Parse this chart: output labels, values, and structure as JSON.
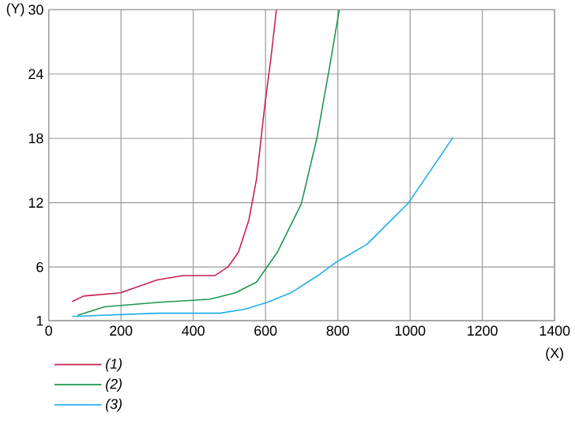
{
  "chart_data": {
    "type": "line",
    "xlabel": "(X)",
    "ylabel": "(Y)",
    "xlim": [
      0,
      1400
    ],
    "ylim": [
      1,
      30
    ],
    "xticks": [
      0,
      200,
      400,
      600,
      800,
      1000,
      1200,
      1400
    ],
    "yticks": [
      1,
      6,
      12,
      18,
      24,
      30
    ],
    "grid": true,
    "legend": "bottom left",
    "marker": "none",
    "line_style": "solid",
    "series": [
      {
        "name": "(1)",
        "color": "#c8214f",
        "x": [
          65,
          97,
          199,
          300,
          372,
          459,
          496,
          525,
          554,
          575,
          597,
          616,
          630
        ],
        "values": [
          2.8,
          3.3,
          3.6,
          4.8,
          5.2,
          5.2,
          6.0,
          7.4,
          10.4,
          14.2,
          20.8,
          25.8,
          30
        ]
      },
      {
        "name": "(2)",
        "color": "#1e9650",
        "x": [
          80,
          155,
          300,
          445,
          517,
          575,
          604,
          633,
          699,
          742,
          778,
          804
        ],
        "values": [
          1.5,
          2.3,
          2.7,
          3.0,
          3.6,
          4.6,
          6.0,
          7.4,
          11.9,
          18,
          24.8,
          30
        ]
      },
      {
        "name": "(3)",
        "color": "#1eaee8",
        "x": [
          65,
          300,
          474,
          546,
          604,
          670,
          749,
          793,
          880,
          996,
          1119
        ],
        "values": [
          1.4,
          1.7,
          1.7,
          2.1,
          2.7,
          3.6,
          5.3,
          6.4,
          8.1,
          12,
          18.1
        ]
      }
    ]
  }
}
